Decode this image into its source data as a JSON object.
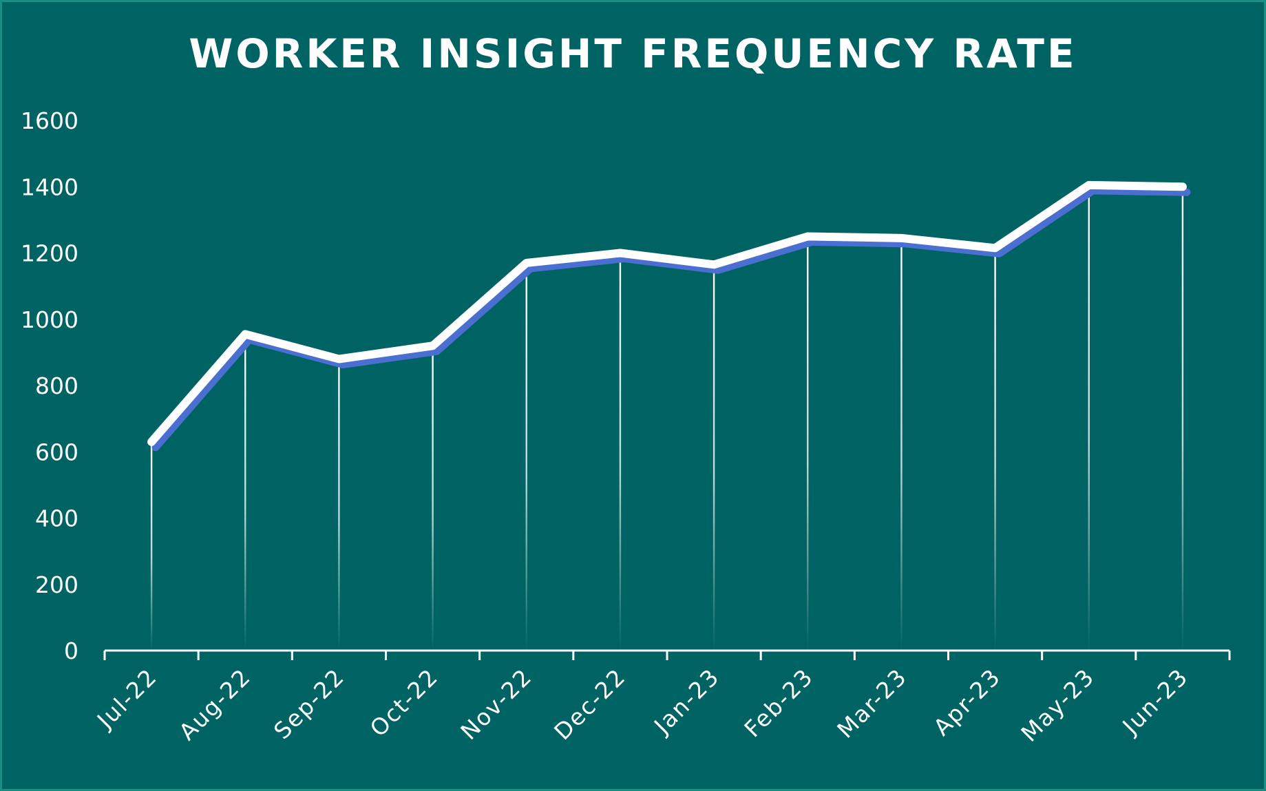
{
  "colors": {
    "background": "#006363",
    "border": "#1a8f86",
    "line": "#ffffff",
    "shadow": "#4a6fd0"
  },
  "chart_data": {
    "type": "line",
    "title": "WORKER INSIGHT FREQUENCY RATE",
    "xlabel": "",
    "ylabel": "",
    "categories": [
      "Jul-22",
      "Aug-22",
      "Sep-22",
      "Oct-22",
      "Nov-22",
      "Dec-22",
      "Jan-23",
      "Feb-23",
      "Mar-23",
      "Apr-23",
      "May-23",
      "Jun-23"
    ],
    "series": [
      {
        "values": [
          630,
          955,
          880,
          920,
          1170,
          1200,
          1165,
          1250,
          1245,
          1215,
          1405,
          1400
        ]
      }
    ],
    "ylim": [
      0,
      1600
    ],
    "yticks": [
      0,
      200,
      400,
      600,
      800,
      1000,
      1200,
      1400,
      1600
    ],
    "grid": false,
    "drop_lines": true,
    "legend": "none"
  }
}
